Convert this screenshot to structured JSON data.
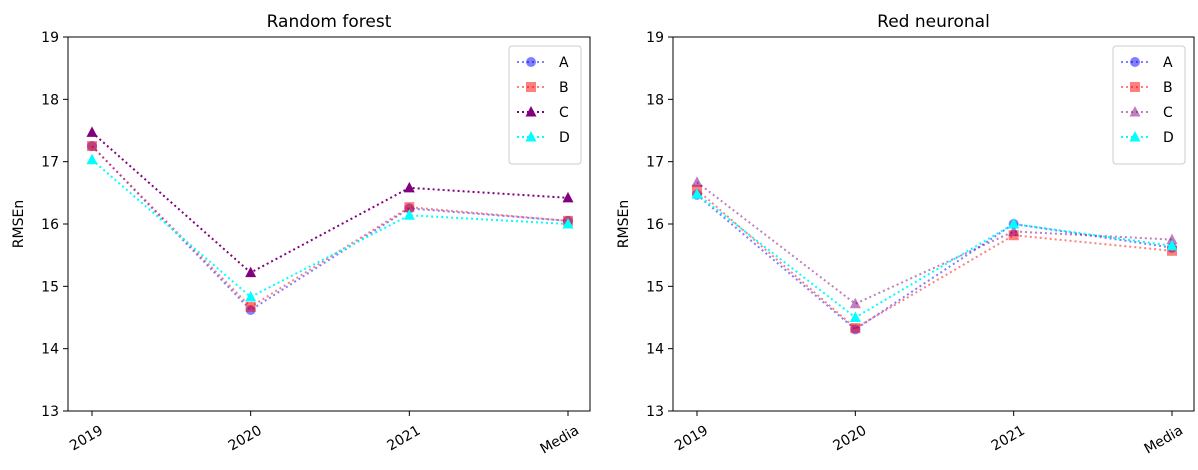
{
  "chart_data": [
    {
      "type": "line",
      "title": "Random forest",
      "xlabel": "",
      "ylabel": "RMSEn",
      "categories": [
        "2019",
        "2020",
        "2021",
        "Media"
      ],
      "ylim": [
        13,
        19
      ],
      "yticks": [
        13,
        14,
        15,
        16,
        17,
        18,
        19
      ],
      "grid": false,
      "legend_position": "top-right",
      "series": [
        {
          "name": "A",
          "values": [
            17.25,
            14.62,
            16.25,
            16.05
          ],
          "color": "#0000ff",
          "marker": "circle",
          "opacity": 0.5
        },
        {
          "name": "B",
          "values": [
            17.25,
            14.67,
            16.27,
            16.05
          ],
          "color": "#ff0000",
          "marker": "square",
          "opacity": 0.5
        },
        {
          "name": "C",
          "values": [
            17.47,
            15.22,
            16.58,
            16.42
          ],
          "color": "#800080",
          "marker": "triangle",
          "opacity": 1.0
        },
        {
          "name": "D",
          "values": [
            17.03,
            14.83,
            16.14,
            16.0
          ],
          "color": "#00ffff",
          "marker": "triangle",
          "opacity": 1.0
        }
      ]
    },
    {
      "type": "line",
      "title": "Red neuronal",
      "xlabel": "",
      "ylabel": "RMSEn",
      "categories": [
        "2019",
        "2020",
        "2021",
        "Media"
      ],
      "ylim": [
        13,
        19
      ],
      "yticks": [
        13,
        14,
        15,
        16,
        17,
        18,
        19
      ],
      "grid": false,
      "legend_position": "top-right",
      "series": [
        {
          "name": "A",
          "values": [
            16.47,
            14.31,
            16.0,
            15.62
          ],
          "color": "#0000ff",
          "marker": "circle",
          "opacity": 0.5
        },
        {
          "name": "B",
          "values": [
            16.55,
            14.33,
            15.82,
            15.57
          ],
          "color": "#ff0000",
          "marker": "square",
          "opacity": 0.5
        },
        {
          "name": "C",
          "values": [
            16.67,
            14.72,
            15.88,
            15.75
          ],
          "color": "#800080",
          "marker": "triangle",
          "opacity": 0.5
        },
        {
          "name": "D",
          "values": [
            16.48,
            14.5,
            16.0,
            15.65
          ],
          "color": "#00ffff",
          "marker": "triangle",
          "opacity": 1.0
        }
      ]
    }
  ]
}
